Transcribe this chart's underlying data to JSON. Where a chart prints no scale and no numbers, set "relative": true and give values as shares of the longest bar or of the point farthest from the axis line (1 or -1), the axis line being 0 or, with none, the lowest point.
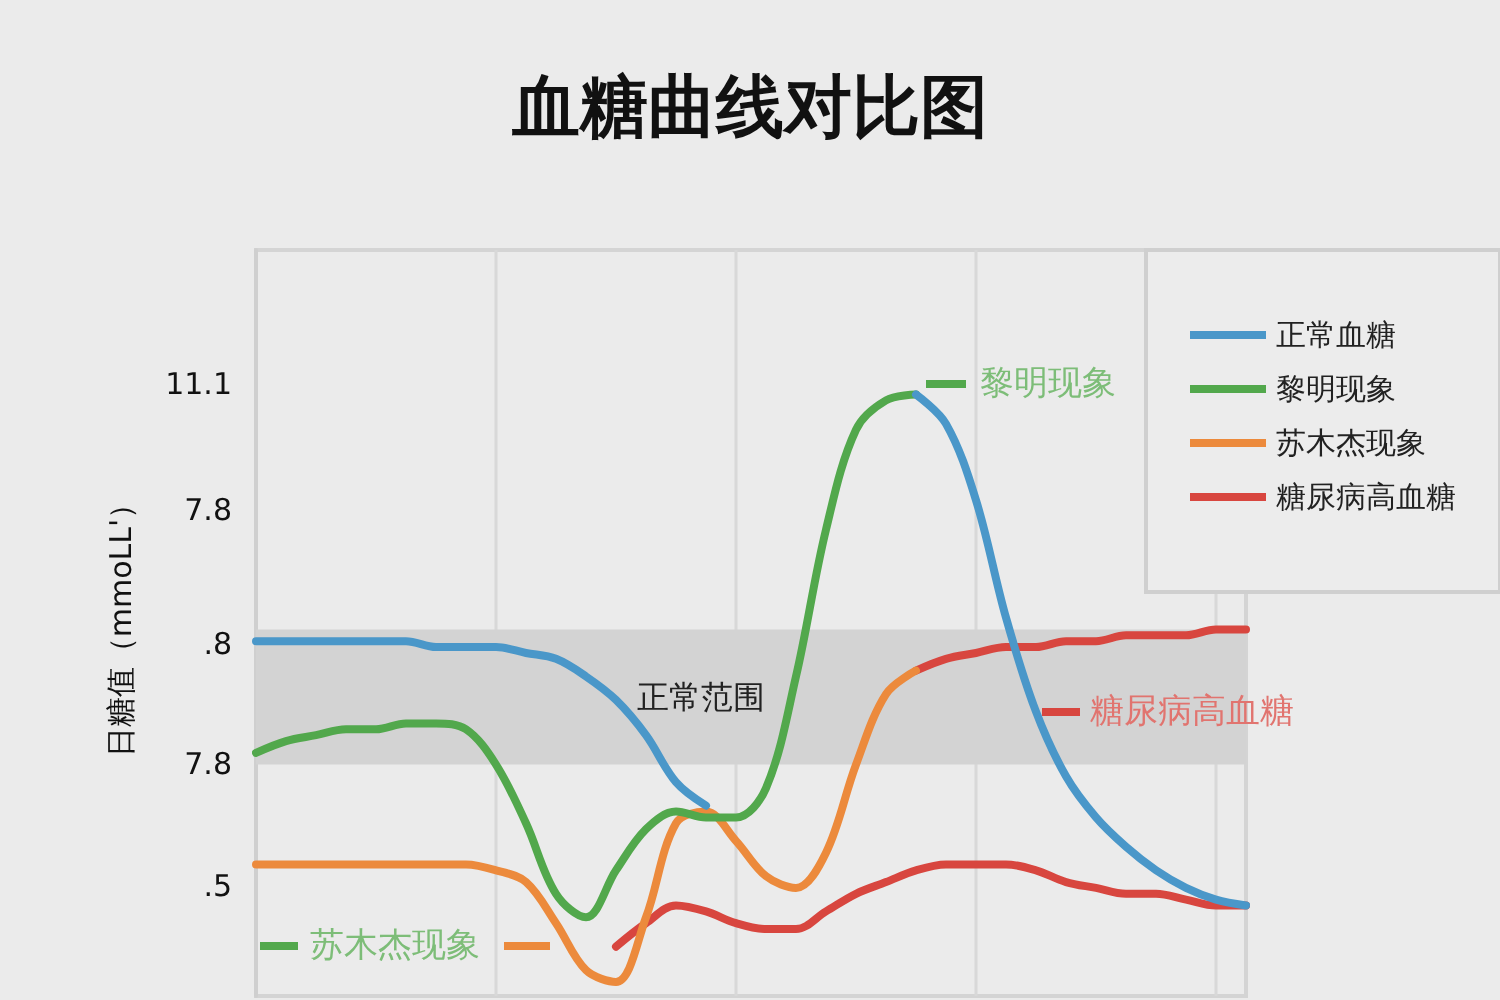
{
  "chart_data": {
    "type": "line",
    "title": "血糖曲线对比图",
    "ylabel": "日糖值（mmoLL'）",
    "relative": true,
    "categories": [
      null,
      null,
      null,
      null,
      null,
      null,
      null,
      null,
      null,
      null,
      null,
      null,
      null,
      null,
      null,
      null,
      null,
      null,
      null,
      null,
      null,
      null,
      null,
      null,
      null,
      null,
      null,
      null,
      null,
      null,
      null,
      null,
      null,
      null
    ],
    "series": [
      {
        "name": "正常血糖",
        "color": "#4a97c9",
        "values": [
          0.58,
          0.58,
          0.58,
          0.58,
          0.58,
          0.58,
          0.57,
          0.57,
          0.57,
          0.56,
          0.55,
          0.52,
          0.48,
          0.42,
          0.34,
          0.3,
          null,
          null,
          null,
          null,
          null,
          null,
          1,
          0.95,
          0.82,
          0.62,
          0.46,
          0.35,
          0.28,
          0.23,
          0.19,
          0.16,
          0.14,
          0.13
        ]
      },
      {
        "name": "黎明现象",
        "color": "#52a84c",
        "values": [
          0.39,
          0.41,
          0.42,
          0.43,
          0.43,
          0.44,
          0.44,
          0.43,
          0.37,
          0.27,
          0.15,
          0.11,
          0.19,
          0.26,
          0.29,
          0.28,
          0.28,
          0.33,
          0.52,
          0.77,
          0.94,
          0.99,
          1,
          null,
          null,
          null,
          null,
          null,
          null,
          null,
          null,
          null,
          null,
          null
        ]
      },
      {
        "name": "苏木杰现象",
        "color": "#ec8a3c",
        "values": [
          0.2,
          0.2,
          0.2,
          0.2,
          0.2,
          0.2,
          0.2,
          0.2,
          0.19,
          0.17,
          0.1,
          0.02,
          0,
          0.11,
          0.27,
          0.29,
          0.24,
          0.18,
          0.16,
          0.22,
          0.37,
          0.49,
          0.53,
          null,
          null,
          null,
          null,
          null,
          null,
          null,
          null,
          null,
          null,
          null
        ]
      },
      {
        "name": "糖尿病高血糖",
        "color": "#d8463f",
        "values": [
          null,
          null,
          null,
          null,
          null,
          null,
          null,
          null,
          null,
          null,
          null,
          null,
          0.06,
          0.1,
          0.13,
          0.12,
          0.1,
          0.09,
          0.09,
          0.12,
          0.15,
          0.17,
          0.19,
          0.2,
          0.2,
          0.2,
          0.19,
          0.17,
          0.16,
          0.15,
          0.15,
          0.14,
          0.13,
          0.13
        ]
      },
      {
        "color": "#d8463f",
        "values": [
          null,
          null,
          null,
          null,
          null,
          null,
          null,
          null,
          null,
          null,
          null,
          null,
          null,
          null,
          null,
          null,
          null,
          null,
          null,
          null,
          null,
          null,
          0.53,
          0.55,
          0.56,
          0.57,
          0.57,
          0.58,
          0.58,
          0.59,
          0.59,
          0.59,
          0.6,
          0.6
        ]
      }
    ],
    "bands": [
      {
        "axis": "y",
        "from": 0.37,
        "to": 0.6,
        "label": "正常范围",
        "color": "#d3d3d3"
      }
    ],
    "annotations": [
      "11.1",
      "7.8",
      ".8",
      "7.8",
      ".5",
      "黎明现象",
      "苏木杰现象",
      "糖尿病高血糖"
    ],
    "grid": "x",
    "legend": "top right",
    "marker": "none",
    "line_style": "solid"
  }
}
